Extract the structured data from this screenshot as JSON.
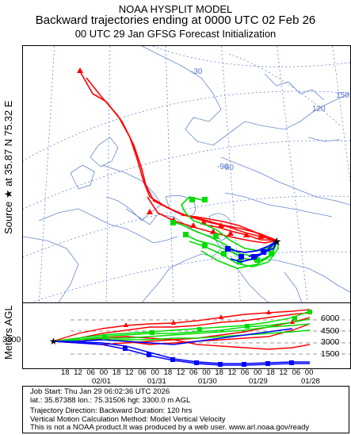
{
  "title": {
    "line1": "NOAA HYSPLIT MODEL",
    "line2": "Backward trajectories ending at 0000 UTC 02 Feb 26",
    "line3": "00 UTC 29 Jan    GFSG  Forecast Initialization"
  },
  "source": {
    "label": "Source ★  at   35.87 N   75.32 E"
  },
  "map": {
    "lat_labels": [
      "-30",
      "-60",
      "-90",
      "120",
      "150",
      "60"
    ],
    "grid_color": "#5577cc"
  },
  "trajectories": {
    "colors": {
      "red": "#ff0000",
      "blue": "#0000ff",
      "green": "#00dd00"
    },
    "heights_m_agl": [
      1500,
      3000,
      4500,
      6000
    ],
    "start_height_m_agl": 3300,
    "duration_hours": 120
  },
  "vertical": {
    "axis_label": "Meters AGL",
    "start_label": "3300",
    "height_labels": [
      "6000",
      "4500",
      "3000",
      "1500"
    ],
    "hour_ticks": [
      "18",
      "12",
      "06",
      "00",
      "18",
      "12",
      "06",
      "00",
      "18",
      "12",
      "06",
      "00",
      "18",
      "12",
      "06",
      "00",
      "18",
      "12",
      "06",
      "00"
    ],
    "date_labels": [
      "02/01",
      "01/31",
      "01/30",
      "01/29",
      "01/28"
    ]
  },
  "footer": {
    "line1": "Job Start: Thu Jan 29 06:02:36 UTC 2026",
    "line2": "lat.: 35.87388   lon.: 75.31506   hgt: 3300.0 m AGL",
    "line3": "Trajectory Direction: Backward       Duration: 120 hrs",
    "line4": "Vertical Motion Calculation Method: Model Vertical Velocity",
    "line5": "This is not a NOAA product.It was produced by a web user. www.arl.noaa.gov/ready"
  }
}
